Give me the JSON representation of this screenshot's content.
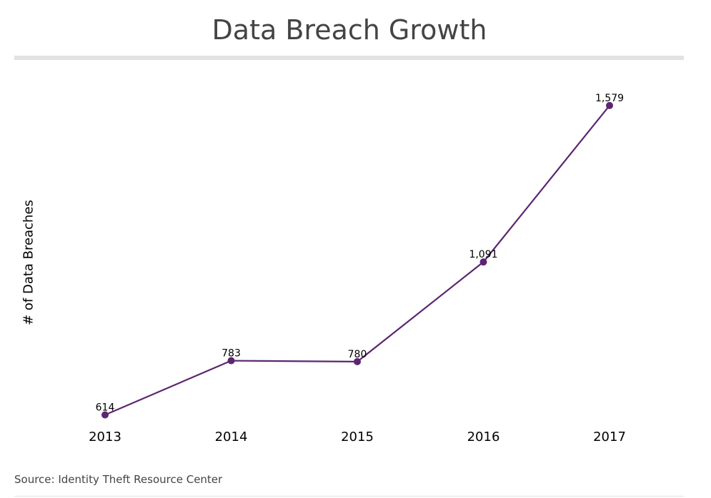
{
  "chart_data": {
    "type": "line",
    "title": "Data Breach Growth",
    "xlabel": "",
    "ylabel": "# of Data Breaches",
    "categories": [
      "2013",
      "2014",
      "2015",
      "2016",
      "2017"
    ],
    "series": [
      {
        "values": [
          614,
          783,
          780,
          1091,
          1579
        ],
        "labels": [
          "614",
          "783",
          "780",
          "1,091",
          "1,579"
        ]
      }
    ],
    "ylim": [
      575,
      1630
    ],
    "grid": false,
    "legend": "none",
    "line_color": "#5b2670"
  },
  "source": "Source: Identity Theft Resource Center"
}
